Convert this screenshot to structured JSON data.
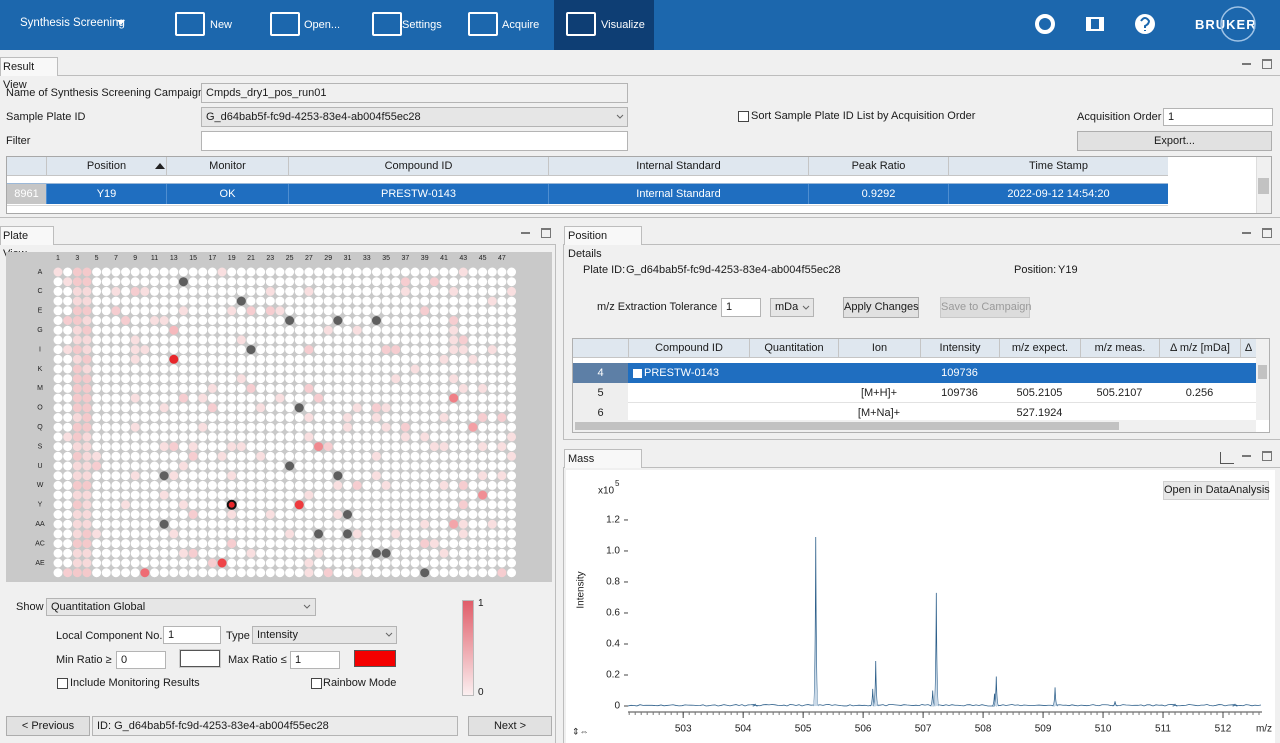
{
  "toolbar": {
    "menu": "Synthesis Screening",
    "buttons": [
      "New",
      "Open...",
      "Settings",
      "Acquire",
      "Visualize"
    ],
    "logo": "BRUKER"
  },
  "result_view": {
    "tab": "Result View",
    "campaign_label": "Name of Synthesis Screening Campaign",
    "campaign": "Cmpds_dry1_pos_run01",
    "plate_id_label": "Sample Plate ID",
    "plate_id": "G_d64bab5f-fc9d-4253-83e4-ab004f55ec28",
    "filter_label": "Filter",
    "sort_label": "Sort Sample Plate ID List by Acquisition Order",
    "acquisition_label": "Acquisition Order",
    "acquisition_value": 1,
    "export": "Export...",
    "table": {
      "columns": [
        "Position",
        "Monitor",
        "Compound ID",
        "Internal Standard",
        "Peak Ratio",
        "Time Stamp"
      ],
      "row": {
        "index": 8961,
        "cells": [
          "Y19",
          "OK",
          "PRESTW-0143",
          "Internal Standard",
          0.9292,
          "2022-09-12 14:54:20"
        ]
      }
    }
  },
  "plate_view": {
    "tab": "Plate View",
    "column_labels": [
      1,
      3,
      5,
      7,
      9,
      11,
      13,
      15,
      17,
      19,
      21,
      23,
      25,
      27,
      29,
      31,
      33,
      35,
      37,
      39,
      41,
      43,
      45,
      47
    ],
    "row_labels": [
      "A",
      "C",
      "E",
      "G",
      "I",
      "K",
      "M",
      "O",
      "Q",
      "S",
      "U",
      "W",
      "Y",
      "AA",
      "AC",
      "AE"
    ],
    "show_label": "Show",
    "show_value": "Quantitation Global",
    "local_label": "Local Component No.",
    "local_value": 1,
    "type_label": "Type",
    "type_value": "Intensity",
    "min_label": "Min Ratio ≥",
    "min_value": 0,
    "max_label": "Max Ratio ≤",
    "max_value": 1,
    "include_label": "Include Monitoring Results",
    "rainbow_label": "Rainbow Mode",
    "scale_max": 1,
    "scale_min": 0,
    "previous": "< Previous",
    "id_text": "ID: G_d64bab5f-fc9d-4253-83e4-ab004f55ec28",
    "next": "Next >"
  },
  "position_details": {
    "tab": "Position Details",
    "plate_id_label": "Plate ID:",
    "plate_id": "G_d64bab5f-fc9d-4253-83e4-ab004f55ec28",
    "position_label": "Position:",
    "position": "Y19",
    "tolerance_label": "m/z Extraction Tolerance",
    "tolerance": 1,
    "unit": "mDa",
    "apply": "Apply Changes",
    "save": "Save to Campaign",
    "table": {
      "columns": [
        "Compound ID",
        "Quantitation",
        "Ion",
        "Intensity",
        "m/z expect.",
        "m/z meas.",
        "Δ m/z [mDa]",
        "Δ"
      ],
      "rows": [
        {
          "index": 4,
          "compound": "PRESTW-0143",
          "intensity": 109736
        },
        {
          "index": 5,
          "ion": "[M+H]+",
          "intensity": 109736,
          "mz_expected": 505.2105,
          "mz_measured": 505.2107,
          "delta": 0.256
        },
        {
          "index": 6,
          "ion": "[M+Na]+",
          "mz_expected": 527.1924
        }
      ]
    }
  },
  "mass_spectrum": {
    "tab": "Mass Spectrum",
    "open_button": "Open in DataAnalysis",
    "y_label": "Intensity",
    "x_label": "m/z",
    "y_multiplier": "x10",
    "y_exponent": 5,
    "xlim": [
      502.08,
      512.65
    ],
    "ylim": [
      0,
      1.49
    ],
    "xticks": [
      503,
      504,
      505,
      506,
      507,
      508,
      509,
      510,
      511,
      512
    ],
    "yticks": [
      0,
      0.2,
      0.4,
      0.6,
      0.8,
      {
        "value": 1,
        "label": "1.0"
      },
      1.2
    ],
    "peaks": {
      "x": [
        504.2,
        505.21,
        506.16,
        506.21,
        507.16,
        507.22,
        508.19,
        508.22,
        509.2,
        510.2,
        511.2,
        512.2
      ],
      "values": [
        0.01,
        1.09,
        0.11,
        0.29,
        0.1,
        0.73,
        0.08,
        0.19,
        0.12,
        0.03,
        0.01,
        0.01
      ]
    }
  }
}
